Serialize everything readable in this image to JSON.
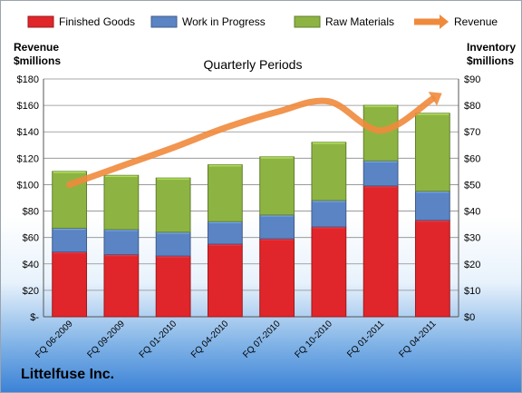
{
  "chart_data": {
    "type": "bar",
    "stacked": true,
    "title": "Quarterly Periods",
    "categories": [
      "FQ 06-2009",
      "FQ 09-2009",
      "FQ 01-2010",
      "FQ 04-2010",
      "FQ 07-2010",
      "FQ 10-2010",
      "FQ 01-2011",
      "FQ 04-2011"
    ],
    "left_axis": {
      "label_line1": "Revenue",
      "label_line2": "$millions",
      "ylim": [
        0,
        180
      ],
      "ticks": [
        0,
        20,
        40,
        60,
        80,
        100,
        120,
        140,
        160,
        180
      ],
      "tick_labels": [
        "$-",
        "$20",
        "$40",
        "$60",
        "$80",
        "$100",
        "$120",
        "$140",
        "$160",
        "$180"
      ]
    },
    "right_axis": {
      "label_line1": "Inventory",
      "label_line2": "$millions",
      "ylim": [
        0,
        90
      ],
      "ticks": [
        0,
        10,
        20,
        30,
        40,
        50,
        60,
        70,
        80,
        90
      ],
      "tick_labels": [
        "$0",
        "$10",
        "$20",
        "$30",
        "$40",
        "$50",
        "$60",
        "$70",
        "$80",
        "$90"
      ]
    },
    "series": [
      {
        "name": "Finished Goods",
        "axis": "right",
        "color": "#e0262b",
        "values": [
          24.5,
          23.5,
          23,
          27.5,
          29.5,
          34,
          49.5,
          36.5
        ]
      },
      {
        "name": "Work in Progress",
        "axis": "right",
        "color": "#5b84c4",
        "values": [
          9,
          9.5,
          9,
          8.5,
          9,
          10,
          9.5,
          11
        ]
      },
      {
        "name": "Raw Materials",
        "axis": "right",
        "color": "#8db443",
        "values": [
          21.5,
          20.5,
          20.5,
          21.5,
          22,
          22,
          21,
          29.5
        ]
      },
      {
        "name": "Revenue",
        "type": "line",
        "axis": "left",
        "color": "#ef8a3c",
        "values": [
          100,
          114,
          128,
          143,
          155,
          163,
          141,
          165
        ]
      }
    ],
    "legend_position": "top",
    "grid": true
  },
  "footer": {
    "company": "Littelfuse Inc."
  }
}
